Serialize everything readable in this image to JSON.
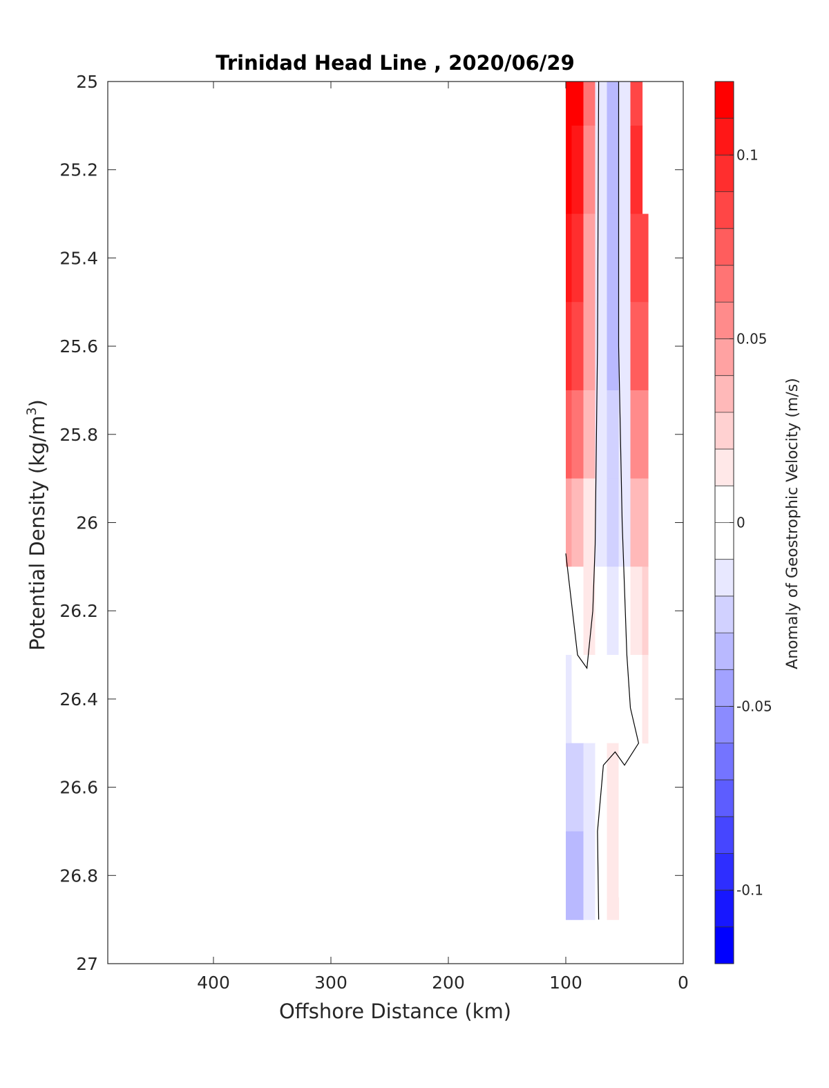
{
  "chart_data": {
    "type": "contourf",
    "title": "Trinidad Head Line , 2020/06/29",
    "xlabel": "Offshore Distance (km)",
    "ylabel": "Potential Density (kg/m",
    "ylabel_sup": "3",
    "ylabel_close": ")",
    "colorbar_label": "Anomaly of Geostrophic Velocity (m/s)",
    "xlim": [
      490,
      0
    ],
    "ylim": [
      25,
      27
    ],
    "x_reversed": true,
    "y_reversed": true,
    "xticks": [
      400,
      300,
      200,
      100,
      0
    ],
    "xtick_labels": [
      "400",
      "300",
      "200",
      "100",
      "0"
    ],
    "yticks": [
      25,
      25.2,
      25.4,
      25.6,
      25.8,
      26,
      26.2,
      26.4,
      26.6,
      26.8,
      27
    ],
    "ytick_labels": [
      "25",
      "25.2",
      "25.4",
      "25.6",
      "25.8",
      "26",
      "26.2",
      "26.4",
      "26.6",
      "26.8",
      "27"
    ],
    "colorbar": {
      "range": [
        -0.12,
        0.12
      ],
      "step": 0.01,
      "ticks": [
        0.1,
        0.05,
        0,
        -0.05,
        -0.1
      ],
      "tick_labels": [
        "0.1",
        "0.05",
        "0",
        "-0.05",
        "-0.1"
      ],
      "colormap": "blue-white-red",
      "negative_color": "#0000ff",
      "positive_color": "#ff0000"
    },
    "x": [
      100,
      90,
      80,
      70,
      60,
      50,
      40,
      30
    ],
    "y": [
      25,
      25.2,
      25.4,
      25.6,
      25.8,
      26,
      26.2,
      26.4,
      26.6,
      26.8,
      26.9
    ],
    "z": [
      [
        0.12,
        0.11,
        0.06,
        -0.01,
        -0.03,
        -0.01,
        0.08,
        null
      ],
      [
        0.11,
        0.1,
        0.05,
        -0.01,
        -0.03,
        -0.01,
        0.09,
        null
      ],
      [
        0.1,
        0.09,
        0.045,
        -0.01,
        -0.03,
        -0.01,
        0.085,
        0.085
      ],
      [
        0.09,
        0.08,
        0.04,
        -0.01,
        -0.03,
        -0.01,
        0.07,
        0.07
      ],
      [
        0.07,
        0.06,
        0.03,
        -0.01,
        -0.025,
        -0.01,
        0.05,
        0.05
      ],
      [
        0.04,
        0.03,
        0.015,
        -0.01,
        -0.02,
        -0.01,
        0.03,
        0.035
      ],
      [
        -0.005,
        0.005,
        0.01,
        -0.005,
        -0.015,
        -0.005,
        0.01,
        0.02
      ],
      [
        -0.01,
        -0.005,
        -0.002,
        0.0,
        -0.005,
        0.0,
        0.0,
        0.015
      ],
      [
        -0.025,
        -0.02,
        -0.01,
        0.0,
        0.01,
        0.0,
        0.0,
        null
      ],
      [
        -0.035,
        -0.03,
        -0.015,
        0.005,
        0.015,
        0.005,
        null,
        null
      ],
      [
        -0.035,
        -0.03,
        -0.01,
        0.005,
        0.012,
        null,
        null,
        null
      ]
    ],
    "zero_contours": [
      [
        [
          100,
          26.07
        ],
        [
          90,
          26.3
        ],
        [
          82,
          26.33
        ],
        [
          77,
          26.2
        ],
        [
          75,
          26.05
        ],
        [
          73,
          25.6
        ],
        [
          72,
          25
        ]
      ],
      [
        [
          55,
          25
        ],
        [
          55,
          25.6
        ],
        [
          52,
          26.0
        ],
        [
          48,
          26.3
        ],
        [
          45,
          26.42
        ],
        [
          38,
          26.5
        ],
        [
          50,
          26.55
        ],
        [
          58,
          26.52
        ],
        [
          68,
          26.55
        ],
        [
          73,
          26.7
        ],
        [
          72,
          26.9
        ]
      ]
    ]
  }
}
